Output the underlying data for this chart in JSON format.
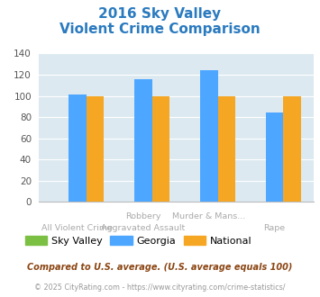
{
  "title_line1": "2016 Sky Valley",
  "title_line2": "Violent Crime Comparison",
  "title_color": "#2a7abf",
  "categories_top": [
    "",
    "Robbery",
    "Murder & Mans...",
    ""
  ],
  "categories_bottom": [
    "All Violent Crime",
    "Aggravated Assault",
    "",
    "Rape"
  ],
  "sky_valley": [
    0,
    0,
    0,
    0
  ],
  "georgia": [
    101,
    116,
    124,
    84
  ],
  "national": [
    100,
    100,
    100,
    100
  ],
  "sky_valley_color": "#7bc043",
  "georgia_color": "#4da6ff",
  "national_color": "#f5a623",
  "ylim": [
    0,
    140
  ],
  "yticks": [
    0,
    20,
    40,
    60,
    80,
    100,
    120,
    140
  ],
  "bg_color": "#dce9f0",
  "legend_labels": [
    "Sky Valley",
    "Georgia",
    "National"
  ],
  "footnote1": "Compared to U.S. average. (U.S. average equals 100)",
  "footnote2": "© 2025 CityRating.com - https://www.cityrating.com/crime-statistics/",
  "footnote1_color": "#8b4513",
  "footnote2_color": "#999999",
  "label_color": "#aaaaaa"
}
